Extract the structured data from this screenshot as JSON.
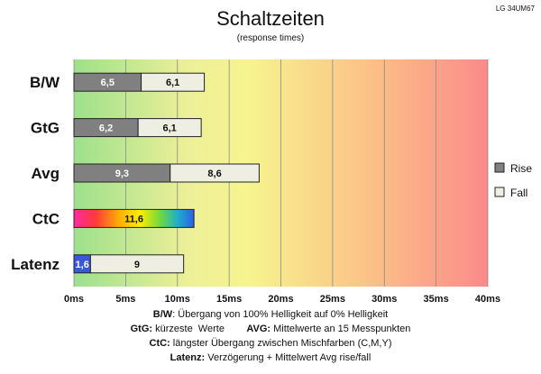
{
  "header": {
    "title": "Schaltzeiten",
    "subtitle": "(response times)",
    "model": "LG 34UM67"
  },
  "chart_data": {
    "type": "bar",
    "orientation": "horizontal",
    "stacked": true,
    "categories": [
      "B/W",
      "GtG",
      "Avg",
      "CtC",
      "Latenz"
    ],
    "series": [
      {
        "name": "Rise",
        "values": [
          6.5,
          6.2,
          9.3,
          null,
          null
        ],
        "labels": [
          "6,5",
          "6,2",
          "9,3",
          "",
          ""
        ]
      },
      {
        "name": "Fall",
        "values": [
          6.1,
          6.1,
          8.6,
          null,
          null
        ],
        "labels": [
          "6,1",
          "6,1",
          "8,6",
          "",
          ""
        ]
      }
    ],
    "special": {
      "ctc": {
        "value": 11.6,
        "label": "11,6",
        "style": "rainbow"
      },
      "latenz": {
        "delay": 1.6,
        "delay_label": "1,6",
        "avg": 9,
        "avg_label": "9"
      }
    },
    "xlim": [
      0,
      40
    ],
    "x_ticks": [
      0,
      5,
      10,
      15,
      20,
      25,
      30,
      35,
      40
    ],
    "x_tick_labels": [
      "0ms",
      "5ms",
      "10ms",
      "15ms",
      "20ms",
      "25ms",
      "30ms",
      "35ms",
      "40ms"
    ],
    "grid": true,
    "legend_position": "right",
    "background": "gradient green-yellow-red"
  },
  "colors": {
    "rise": "#808080",
    "fall": "#eeeee2",
    "latency_delay": "#3a58d8",
    "grad_green": "#9ee08c",
    "grad_yellow": "#f4f490",
    "grad_red": "#fb8a8a"
  },
  "notes": [
    {
      "b1": "B/W",
      "t1": ":  Übergang von 100% Helligkeit auf 0% Helligkeit"
    },
    {
      "b1": "GtG:",
      "t1": " kürzeste  Werte        ",
      "b2": "AVG:",
      "t2": " Mittelwerte  an 15 Messpunkten"
    },
    {
      "b1": "CtC:",
      "t1": " längster Übergang  zwischen Mischfarben  (C,M,Y)"
    },
    {
      "b1": "Latenz:",
      "t1": " Verzögerung  + Mittelwert  Avg rise/fall"
    }
  ]
}
